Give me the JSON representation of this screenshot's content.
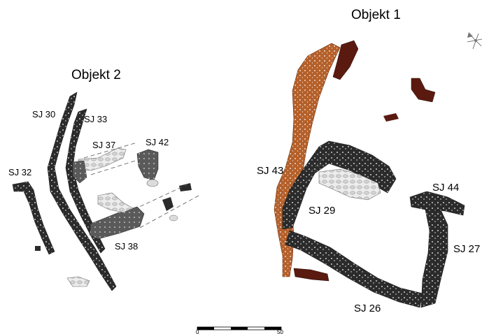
{
  "objects": {
    "objekt1": "Objekt 1",
    "objekt2": "Objekt 2"
  },
  "units": {
    "sj30": "SJ 30",
    "sj33": "SJ 33",
    "sj37": "SJ 37",
    "sj42": "SJ 42",
    "sj32": "SJ 32",
    "sj38": "SJ 38",
    "sj43": "SJ 43",
    "sj29": "SJ 29",
    "sj44": "SJ 44",
    "sj27": "SJ 27",
    "sj26": "SJ 26"
  },
  "scale": {
    "start": "0",
    "end": "50"
  },
  "colors": {
    "stone_dark": "#2b2b2b",
    "stone_mid": "#5a5a5a",
    "stone_light": "#dcdcdc",
    "stone_orange": "#b5602a",
    "stone_maroon": "#5a1a10"
  }
}
